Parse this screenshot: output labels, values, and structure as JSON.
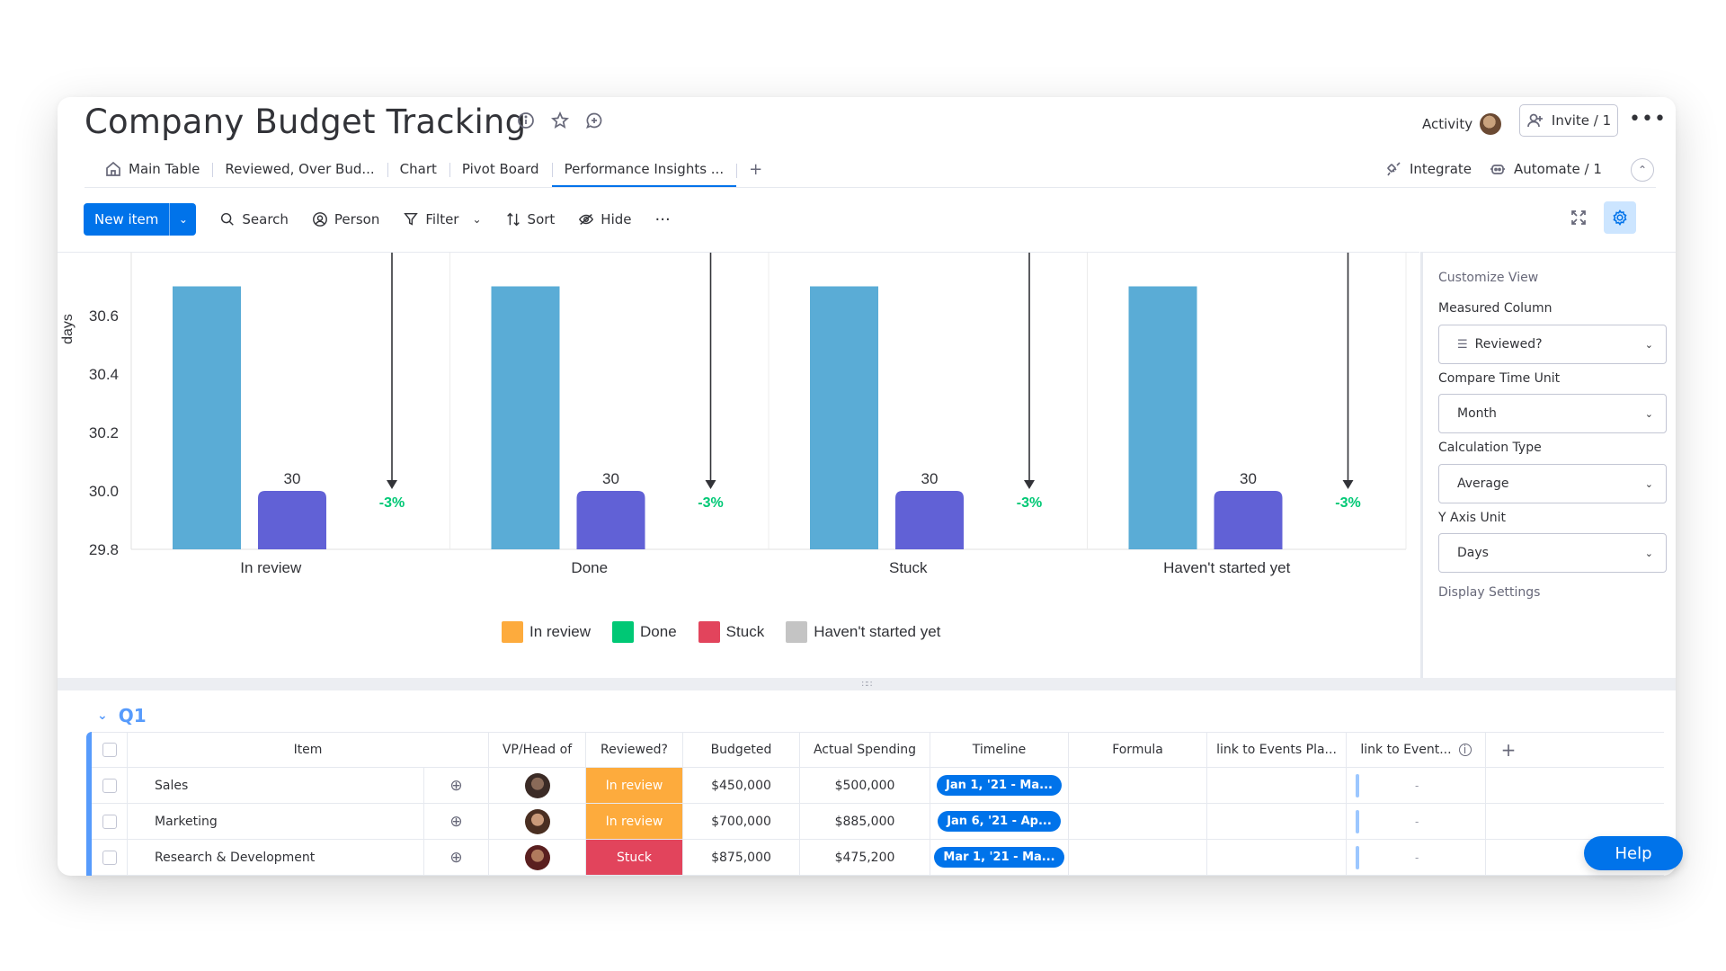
{
  "board": {
    "title": "Company Budget Tracking",
    "activity_label": "Activity",
    "invite_label": "Invite / 1",
    "more_label": "•••"
  },
  "tabs": [
    {
      "label": "Main Table",
      "icon": "home-icon"
    },
    {
      "label": "Reviewed, Over Bud..."
    },
    {
      "label": "Chart"
    },
    {
      "label": "Pivot Board"
    },
    {
      "label": "Performance Insights ...",
      "active": true
    }
  ],
  "tab_add_label": "+",
  "integrate_label": "Integrate",
  "automate_label": "Automate / 1",
  "toolbar": {
    "new_item": "New item",
    "search": "Search",
    "person": "Person",
    "filter": "Filter",
    "sort": "Sort",
    "hide": "Hide",
    "more": "···"
  },
  "chart_data": {
    "type": "bar",
    "ylabel": "days",
    "xlabel": "",
    "ylim": [
      29.8,
      30.7
    ],
    "yticks": [
      29.8,
      30.0,
      30.2,
      30.4,
      30.6
    ],
    "categories": [
      "In review",
      "Done",
      "Stuck",
      "Haven't started yet"
    ],
    "series": [
      {
        "color": "#5aacd6",
        "values": [
          30.7,
          30.7,
          30.7,
          30.7
        ]
      },
      {
        "color": "#6161d6",
        "values": [
          30,
          30,
          30,
          30
        ],
        "labels": [
          "30",
          "30",
          "30",
          "30"
        ]
      }
    ],
    "change_labels": [
      "-3%",
      "-3%",
      "-3%",
      "-3%"
    ],
    "change_color": "#00c875",
    "legend": [
      {
        "label": "In review",
        "color": "#fdab3d"
      },
      {
        "label": "Done",
        "color": "#00c875"
      },
      {
        "label": "Stuck",
        "color": "#e2445c"
      },
      {
        "label": "Haven't started yet",
        "color": "#c4c4c4"
      }
    ],
    "legend_position": "bottom",
    "grid": true
  },
  "panel": {
    "title": "Customize View",
    "measured_label": "Measured Column",
    "measured_value": "Reviewed?",
    "compare_label": "Compare Time Unit",
    "compare_value": "Month",
    "calc_label": "Calculation Type",
    "calc_value": "Average",
    "yaxis_label": "Y Axis Unit",
    "yaxis_value": "Days",
    "display_settings": "Display Settings"
  },
  "split_handle": "∷∷",
  "group": {
    "title": "Q1"
  },
  "table": {
    "headers": {
      "item": "Item",
      "vp": "VP/Head of",
      "reviewed": "Reviewed?",
      "budgeted": "Budgeted",
      "actual": "Actual Spending",
      "timeline": "Timeline",
      "formula": "Formula",
      "link1": "link to Events Pla...",
      "link2": "link to Event...",
      "add": "+"
    },
    "rows": [
      {
        "item": "Sales",
        "status": "In review",
        "status_color": "#fdab3d",
        "budgeted": "$450,000",
        "actual": "$500,000",
        "timeline": "Jan 1, '21 - Ma...",
        "link2": "-"
      },
      {
        "item": "Marketing",
        "status": "In review",
        "status_color": "#fdab3d",
        "budgeted": "$700,000",
        "actual": "$885,000",
        "timeline": "Jan 6, '21 - Ap...",
        "link2": "-"
      },
      {
        "item": "Research & Development",
        "status": "Stuck",
        "status_color": "#e2445c",
        "budgeted": "$875,000",
        "actual": "$475,200",
        "timeline": "Mar 1, '21 - Ma...",
        "link2": "-"
      }
    ]
  },
  "help_label": "Help"
}
